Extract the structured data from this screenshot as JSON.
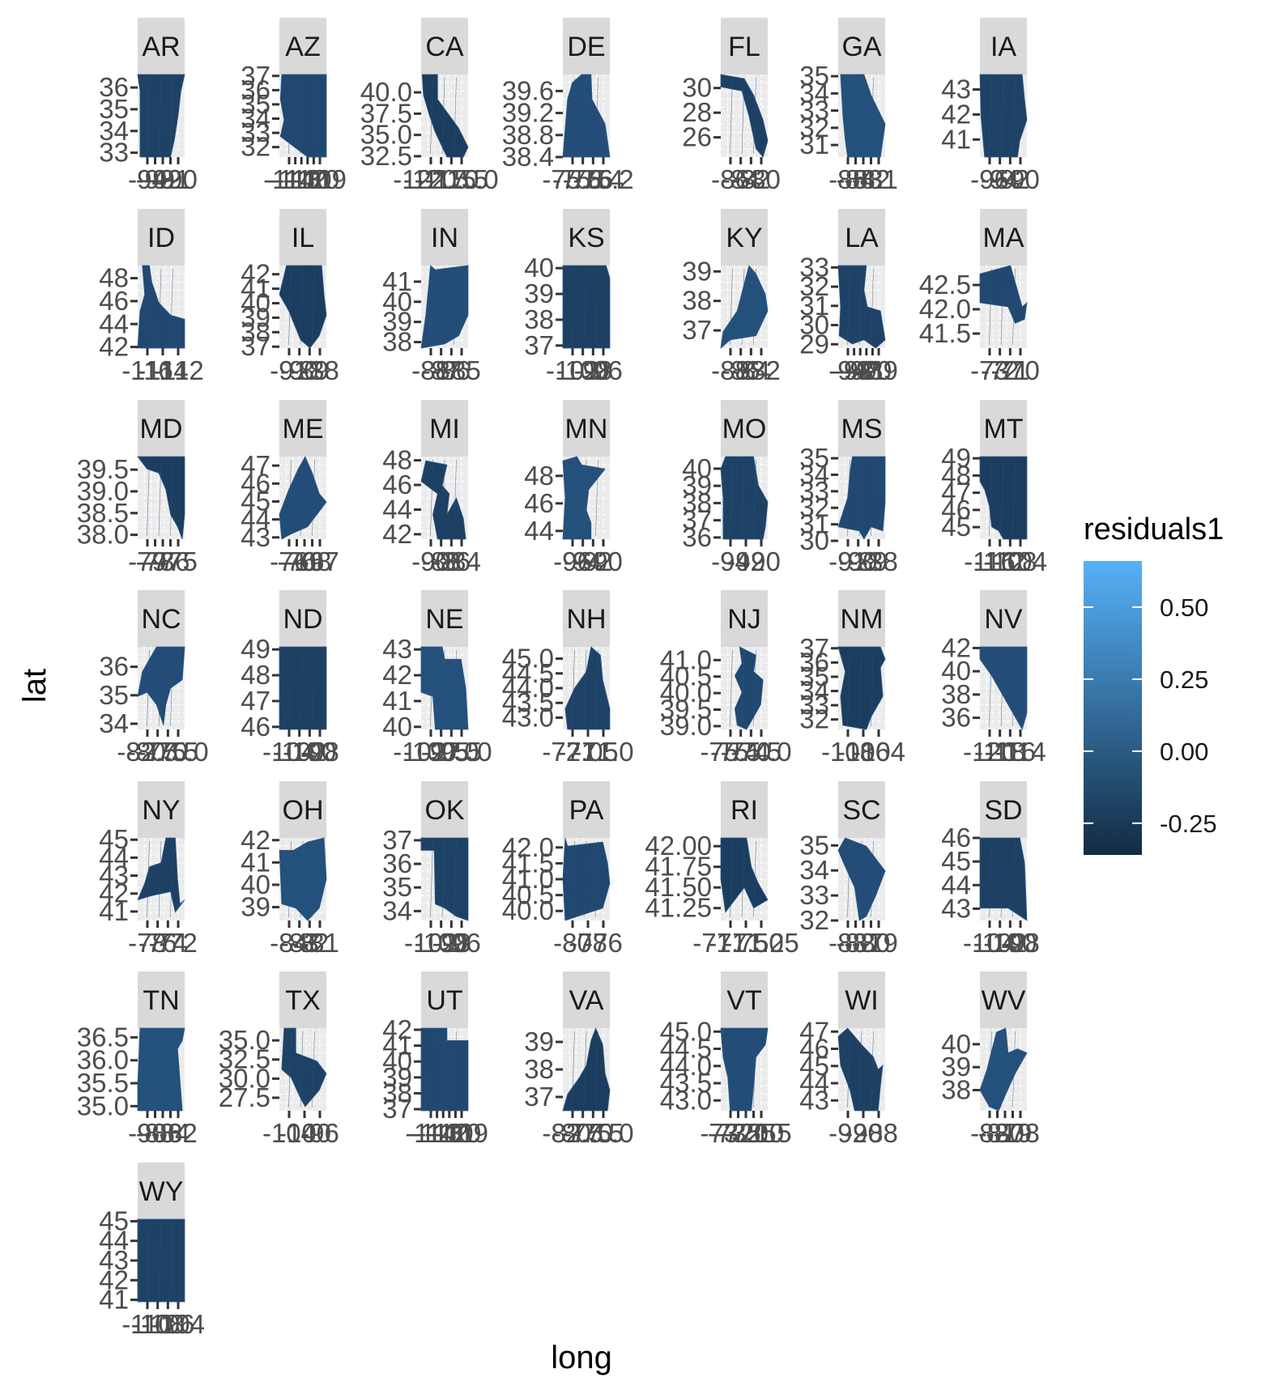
{
  "chart_data": {
    "type": "choropleth-facets",
    "xlabel": "long",
    "ylabel": "lat",
    "legend": {
      "title": "residuals1",
      "placement": "right",
      "ticks": [
        "0.50",
        "0.25",
        "0.00",
        "-0.25"
      ],
      "tick_values": [
        0.5,
        0.25,
        0.0,
        -0.25
      ],
      "range": [
        -0.36,
        0.66
      ],
      "low_color": "#132B43",
      "high_color": "#56B1F7"
    },
    "panels": [
      {
        "label": "AR",
        "xticks": [
          "-94",
          "-93",
          "-92",
          "-91",
          "-90"
        ],
        "yticks": [
          "36",
          "35",
          "34",
          "33"
        ],
        "ylim": [
          32.8,
          36.6
        ]
      },
      {
        "label": "AZ",
        "xticks": [
          "-114",
          "-113",
          "-112",
          "-111",
          "-110",
          "-109"
        ],
        "yticks": [
          "37",
          "36",
          "35",
          "34",
          "33",
          "32"
        ],
        "ylim": [
          31.3,
          37.1
        ]
      },
      {
        "label": "CA",
        "xticks": [
          "-122.5",
          "-120.0",
          "-117.5",
          "-115.0"
        ],
        "yticks": [
          "40.0",
          "37.5",
          "35.0",
          "32.5"
        ],
        "ylim": [
          32.4,
          42.1
        ]
      },
      {
        "label": "DE",
        "xticks": [
          "-75.8",
          "-75.6",
          "-75.4",
          "-75.2"
        ],
        "yticks": [
          "39.6",
          "39.2",
          "38.8",
          "38.4"
        ],
        "ylim": [
          38.4,
          39.9
        ]
      },
      {
        "label": "FL",
        "xticks": [
          "-86",
          "-84",
          "-82",
          "-80"
        ],
        "yticks": [
          "30",
          "28",
          "26"
        ],
        "ylim": [
          24.4,
          31.1
        ]
      },
      {
        "label": "GA",
        "xticks": [
          "-85",
          "-84",
          "-83",
          "-82",
          "-81"
        ],
        "yticks": [
          "35",
          "34",
          "33",
          "32",
          "31"
        ],
        "ylim": [
          30.3,
          35.1
        ]
      },
      {
        "label": "IA",
        "xticks": [
          "-96",
          "-94",
          "-92",
          "-90"
        ],
        "yticks": [
          "43",
          "42",
          "41"
        ],
        "ylim": [
          40.3,
          43.6
        ]
      },
      {
        "label": "ID",
        "xticks": [
          "-116",
          "-114",
          "-112"
        ],
        "yticks": [
          "48",
          "46",
          "44",
          "42"
        ],
        "ylim": [
          41.9,
          49.1
        ]
      },
      {
        "label": "IL",
        "xticks": [
          "-91",
          "-90",
          "-89",
          "-88"
        ],
        "yticks": [
          "42",
          "41",
          "40",
          "39",
          "38",
          "37"
        ],
        "ylim": [
          36.9,
          42.6
        ]
      },
      {
        "label": "IN",
        "xticks": [
          "-88",
          "-87",
          "-86",
          "-85"
        ],
        "yticks": [
          "41",
          "40",
          "39",
          "38"
        ],
        "ylim": [
          37.7,
          41.8
        ]
      },
      {
        "label": "KS",
        "xticks": [
          "-102",
          "-100",
          "-98",
          "-96"
        ],
        "yticks": [
          "40",
          "39",
          "38",
          "37"
        ],
        "ylim": [
          36.9,
          40.1
        ]
      },
      {
        "label": "KY",
        "xticks": [
          "-88",
          "-86",
          "-84",
          "-82"
        ],
        "yticks": [
          "39",
          "38",
          "37"
        ],
        "ylim": [
          36.4,
          39.2
        ]
      },
      {
        "label": "LA",
        "xticks": [
          "-94",
          "-93",
          "-92",
          "-91",
          "-90",
          "-89"
        ],
        "yticks": [
          "33",
          "32",
          "31",
          "30",
          "29"
        ],
        "ylim": [
          28.8,
          33.1
        ]
      },
      {
        "label": "MA",
        "xticks": [
          "-73",
          "-72",
          "-71",
          "-70"
        ],
        "yticks": [
          "42.5",
          "42.0",
          "41.5"
        ],
        "ylim": [
          41.2,
          42.9
        ]
      },
      {
        "label": "MD",
        "xticks": [
          "-79",
          "-78",
          "-77",
          "-76",
          "-75"
        ],
        "yticks": [
          "39.5",
          "39.0",
          "38.5",
          "38.0"
        ],
        "ylim": [
          37.9,
          39.8
        ]
      },
      {
        "label": "ME",
        "xticks": [
          "-71",
          "-70",
          "-69",
          "-68",
          "-67"
        ],
        "yticks": [
          "47",
          "46",
          "45",
          "44",
          "43"
        ],
        "ylim": [
          42.9,
          47.5
        ]
      },
      {
        "label": "MI",
        "xticks": [
          "-90",
          "-88",
          "-86",
          "-84"
        ],
        "yticks": [
          "48",
          "46",
          "44",
          "42"
        ],
        "ylim": [
          41.6,
          48.3
        ]
      },
      {
        "label": "MN",
        "xticks": [
          "-96",
          "-94",
          "-92",
          "-90"
        ],
        "yticks": [
          "48",
          "46",
          "44"
        ],
        "ylim": [
          43.4,
          49.4
        ]
      },
      {
        "label": "MO",
        "xticks": [
          "-94",
          "-92",
          "-90"
        ],
        "yticks": [
          "40",
          "39",
          "38",
          "37",
          "36"
        ],
        "ylim": [
          35.9,
          40.7
        ]
      },
      {
        "label": "MS",
        "xticks": [
          "-91",
          "-90",
          "-89",
          "-88"
        ],
        "yticks": [
          "35",
          "34",
          "33",
          "32",
          "31",
          "30"
        ],
        "ylim": [
          30.1,
          35.1
        ]
      },
      {
        "label": "MT",
        "xticks": [
          "-116",
          "-112",
          "-108",
          "-104"
        ],
        "yticks": [
          "49",
          "48",
          "47",
          "46",
          "45"
        ],
        "ylim": [
          44.3,
          49.1
        ]
      },
      {
        "label": "NC",
        "xticks": [
          "-82.5",
          "-80.0",
          "-77.5",
          "-75.0"
        ],
        "yticks": [
          "36",
          "35",
          "34"
        ],
        "ylim": [
          33.8,
          36.7
        ]
      },
      {
        "label": "ND",
        "xticks": [
          "-104",
          "-102",
          "-100",
          "-98"
        ],
        "yticks": [
          "49",
          "48",
          "47",
          "46"
        ],
        "ylim": [
          45.9,
          49.1
        ]
      },
      {
        "label": "NE",
        "xticks": [
          "-102.5",
          "-100.0",
          "-97.5",
          "-95.0"
        ],
        "yticks": [
          "43",
          "42",
          "41",
          "40"
        ],
        "ylim": [
          39.9,
          43.1
        ]
      },
      {
        "label": "NH",
        "xticks": [
          "-72.0",
          "-71.5",
          "-71.0"
        ],
        "yticks": [
          "45.0",
          "44.5",
          "44.0",
          "43.5",
          "43.0"
        ],
        "ylim": [
          42.6,
          45.4
        ]
      },
      {
        "label": "NJ",
        "xticks": [
          "-75.5",
          "-75.0",
          "-74.5",
          "-74.0"
        ],
        "yticks": [
          "41.0",
          "40.5",
          "40.0",
          "39.5",
          "39.0"
        ],
        "ylim": [
          38.9,
          41.4
        ]
      },
      {
        "label": "NM",
        "xticks": [
          "-108",
          "-106",
          "-104"
        ],
        "yticks": [
          "37",
          "36",
          "35",
          "34",
          "33",
          "32"
        ],
        "ylim": [
          31.3,
          37.1
        ]
      },
      {
        "label": "NV",
        "xticks": [
          "-120",
          "-118",
          "-116",
          "-114"
        ],
        "yticks": [
          "42",
          "40",
          "38",
          "36"
        ],
        "ylim": [
          35.0,
          42.1
        ]
      },
      {
        "label": "NY",
        "xticks": [
          "-78",
          "-76",
          "-74",
          "-72"
        ],
        "yticks": [
          "45",
          "44",
          "43",
          "42",
          "41"
        ],
        "ylim": [
          40.5,
          45.1
        ]
      },
      {
        "label": "OH",
        "xticks": [
          "-84",
          "-83",
          "-82",
          "-81"
        ],
        "yticks": [
          "42",
          "41",
          "40",
          "39"
        ],
        "ylim": [
          38.4,
          42.1
        ]
      },
      {
        "label": "OK",
        "xticks": [
          "-102",
          "-100",
          "-98",
          "-96"
        ],
        "yticks": [
          "37",
          "36",
          "35",
          "34"
        ],
        "ylim": [
          33.6,
          37.1
        ]
      },
      {
        "label": "PA",
        "xticks": [
          "-80",
          "-78",
          "-76"
        ],
        "yticks": [
          "42.0",
          "41.5",
          "41.0",
          "40.5",
          "40.0"
        ],
        "ylim": [
          39.7,
          42.3
        ]
      },
      {
        "label": "RI",
        "xticks": [
          "-71.75",
          "-71.50",
          "-71.25"
        ],
        "yticks": [
          "42.00",
          "41.75",
          "41.50",
          "41.25"
        ],
        "ylim": [
          41.1,
          42.1
        ]
      },
      {
        "label": "SC",
        "xticks": [
          "-83",
          "-82",
          "-81",
          "-80",
          "-79"
        ],
        "yticks": [
          "35",
          "34",
          "33",
          "32"
        ],
        "ylim": [
          32.0,
          35.3
        ]
      },
      {
        "label": "SD",
        "xticks": [
          "-104",
          "-102",
          "-100",
          "-98"
        ],
        "yticks": [
          "46",
          "45",
          "44",
          "43"
        ],
        "ylim": [
          42.5,
          46.0
        ]
      },
      {
        "label": "TN",
        "xticks": [
          "-90",
          "-88",
          "-86",
          "-84",
          "-82"
        ],
        "yticks": [
          "36.5",
          "36.0",
          "35.5",
          "35.0"
        ],
        "ylim": [
          34.9,
          36.7
        ]
      },
      {
        "label": "TX",
        "xticks": [
          "-104",
          "-100",
          "-96"
        ],
        "yticks": [
          "35.0",
          "32.5",
          "30.0",
          "27.5"
        ],
        "ylim": [
          25.8,
          36.6
        ]
      },
      {
        "label": "UT",
        "xticks": [
          "-114",
          "-113",
          "-112",
          "-111",
          "-110",
          "-109"
        ],
        "yticks": [
          "42",
          "41",
          "40",
          "39",
          "38",
          "37"
        ],
        "ylim": [
          36.9,
          42.1
        ]
      },
      {
        "label": "VA",
        "xticks": [
          "-82.5",
          "-80.0",
          "-77.5",
          "-75.0"
        ],
        "yticks": [
          "39",
          "38",
          "37"
        ],
        "ylim": [
          36.5,
          39.5
        ]
      },
      {
        "label": "VT",
        "xticks": [
          "-73.5",
          "-73.0",
          "-72.5",
          "-72.0",
          "-71.5"
        ],
        "yticks": [
          "45.0",
          "44.5",
          "44.0",
          "43.5",
          "43.0"
        ],
        "ylim": [
          42.7,
          45.1
        ]
      },
      {
        "label": "WI",
        "xticks": [
          "-92",
          "-90",
          "-88"
        ],
        "yticks": [
          "47",
          "46",
          "45",
          "44",
          "43"
        ],
        "ylim": [
          42.4,
          47.2
        ]
      },
      {
        "label": "WV",
        "xticks": [
          "-82",
          "-81",
          "-80",
          "-79",
          "-78"
        ],
        "yticks": [
          "40",
          "39",
          "38"
        ],
        "ylim": [
          37.1,
          40.7
        ]
      },
      {
        "label": "WY",
        "xticks": [
          "-110",
          "-108",
          "-106",
          "-104"
        ],
        "yticks": [
          "45",
          "44",
          "43",
          "42",
          "41"
        ],
        "ylim": [
          40.9,
          45.1
        ]
      }
    ]
  }
}
